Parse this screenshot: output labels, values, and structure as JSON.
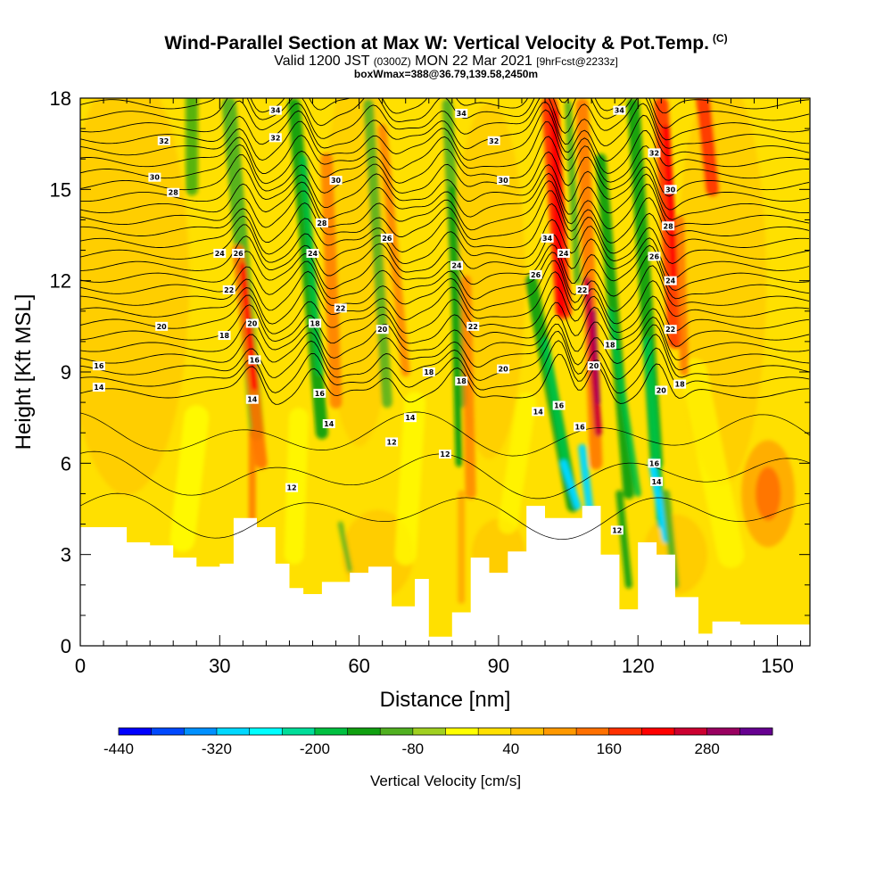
{
  "header": {
    "title": "Wind-Parallel Section at Max W: Vertical Velocity & Pot.Temp.",
    "title_mark": "(C)",
    "valid_prefix": "Valid 1200 JST",
    "valid_z": "(0300Z)",
    "valid_date": "MON 22 Mar 2021",
    "valid_fcst": "[9hrFcst@2233z]",
    "box_info": "boxWmax=388@36.79,139.58,2450m"
  },
  "chart_data": {
    "type": "heatmap",
    "xlabel": "Distance [nm]",
    "ylabel": "Height [Kft MSL]",
    "xlim": [
      0,
      157
    ],
    "ylim": [
      0,
      18
    ],
    "xticks": [
      0,
      30,
      60,
      90,
      120,
      150
    ],
    "yticks": [
      0,
      3,
      6,
      9,
      12,
      15,
      18
    ],
    "colorbar": {
      "label": "Vertical Velocity [cm/s]",
      "tick_labels": [
        "-440",
        "-320",
        "-200",
        "-80",
        "40",
        "160",
        "280"
      ],
      "levels": [
        -440,
        -400,
        -360,
        -320,
        -280,
        -240,
        -200,
        -160,
        -120,
        -80,
        -40,
        0,
        40,
        80,
        120,
        160,
        200,
        240,
        280,
        320
      ],
      "colors": [
        "#0000ff",
        "#0048ff",
        "#0090ff",
        "#00d8ff",
        "#00ffff",
        "#00dd99",
        "#00c040",
        "#10a010",
        "#50b020",
        "#a0d020",
        "#ffff00",
        "#ffe000",
        "#ffc000",
        "#ff9900",
        "#ff7000",
        "#ff3000",
        "#ff0000",
        "#cc0030",
        "#990060",
        "#660090"
      ]
    },
    "terrain_profile": {
      "x": [
        0,
        7,
        10,
        15,
        20,
        25,
        30,
        33,
        38,
        42,
        45,
        48,
        52,
        58,
        62,
        67,
        72,
        75,
        80,
        84,
        88,
        92,
        96,
        100,
        104,
        108,
        112,
        116,
        120,
        124,
        128,
        133,
        136,
        142,
        148,
        157
      ],
      "height": [
        3.9,
        3.9,
        3.4,
        3.3,
        2.9,
        2.6,
        2.7,
        4.2,
        3.9,
        2.7,
        1.9,
        1.7,
        2.1,
        2.4,
        2.6,
        1.3,
        2.2,
        0.3,
        1.1,
        2.9,
        2.4,
        3.1,
        4.6,
        4.2,
        4.2,
        4.6,
        3.0,
        1.2,
        3.4,
        3.0,
        1.6,
        0.4,
        0.8,
        0.7,
        0.7,
        0.7
      ]
    },
    "theta_contour_labels": [
      {
        "text": "14",
        "x": 4,
        "y": 8.5
      },
      {
        "text": "16",
        "x": 4,
        "y": 9.2
      },
      {
        "text": "30",
        "x": 16,
        "y": 15.4
      },
      {
        "text": "32",
        "x": 18,
        "y": 16.6
      },
      {
        "text": "28",
        "x": 20,
        "y": 14.9
      },
      {
        "text": "20",
        "x": 17.5,
        "y": 10.5
      },
      {
        "text": "24",
        "x": 30,
        "y": 12.9
      },
      {
        "text": "26",
        "x": 34,
        "y": 12.9
      },
      {
        "text": "22",
        "x": 32,
        "y": 11.7
      },
      {
        "text": "18",
        "x": 31,
        "y": 10.2
      },
      {
        "text": "20",
        "x": 37,
        "y": 10.6
      },
      {
        "text": "16",
        "x": 37.5,
        "y": 9.4
      },
      {
        "text": "14",
        "x": 37,
        "y": 8.1
      },
      {
        "text": "34",
        "x": 42,
        "y": 17.6
      },
      {
        "text": "32",
        "x": 42,
        "y": 16.7
      },
      {
        "text": "30",
        "x": 55,
        "y": 15.3
      },
      {
        "text": "28",
        "x": 52,
        "y": 13.9
      },
      {
        "text": "24",
        "x": 50,
        "y": 12.9
      },
      {
        "text": "22",
        "x": 56,
        "y": 11.1
      },
      {
        "text": "18",
        "x": 50.5,
        "y": 10.6
      },
      {
        "text": "16",
        "x": 51.5,
        "y": 8.3
      },
      {
        "text": "14",
        "x": 53.5,
        "y": 7.3
      },
      {
        "text": "26",
        "x": 66,
        "y": 13.4
      },
      {
        "text": "20",
        "x": 65,
        "y": 10.4
      },
      {
        "text": "12",
        "x": 67,
        "y": 6.7
      },
      {
        "text": "12",
        "x": 45.5,
        "y": 5.2
      },
      {
        "text": "18",
        "x": 75,
        "y": 9.0
      },
      {
        "text": "14",
        "x": 71,
        "y": 7.5
      },
      {
        "text": "12",
        "x": 78.5,
        "y": 6.3
      },
      {
        "text": "24",
        "x": 81,
        "y": 12.5
      },
      {
        "text": "22",
        "x": 84.5,
        "y": 10.5
      },
      {
        "text": "18",
        "x": 82,
        "y": 8.7
      },
      {
        "text": "34",
        "x": 82,
        "y": 17.5
      },
      {
        "text": "32",
        "x": 89,
        "y": 16.6
      },
      {
        "text": "30",
        "x": 91,
        "y": 15.3
      },
      {
        "text": "26",
        "x": 98,
        "y": 12.2
      },
      {
        "text": "20",
        "x": 91,
        "y": 9.1
      },
      {
        "text": "14",
        "x": 98.5,
        "y": 7.7
      },
      {
        "text": "16",
        "x": 103,
        "y": 7.9
      },
      {
        "text": "34",
        "x": 100.5,
        "y": 13.4
      },
      {
        "text": "24",
        "x": 104,
        "y": 12.9
      },
      {
        "text": "22",
        "x": 108,
        "y": 11.7
      },
      {
        "text": "20",
        "x": 110.5,
        "y": 9.2
      },
      {
        "text": "18",
        "x": 114,
        "y": 9.9
      },
      {
        "text": "16",
        "x": 107.5,
        "y": 7.2
      },
      {
        "text": "12",
        "x": 115.5,
        "y": 3.8
      },
      {
        "text": "34",
        "x": 116,
        "y": 17.6
      },
      {
        "text": "32",
        "x": 123.5,
        "y": 16.2
      },
      {
        "text": "30",
        "x": 127,
        "y": 15.0
      },
      {
        "text": "28",
        "x": 126.5,
        "y": 13.8
      },
      {
        "text": "26",
        "x": 123.5,
        "y": 12.8
      },
      {
        "text": "24",
        "x": 127,
        "y": 12.0
      },
      {
        "text": "22",
        "x": 127,
        "y": 10.4
      },
      {
        "text": "20",
        "x": 125,
        "y": 8.4
      },
      {
        "text": "18",
        "x": 129,
        "y": 8.6
      },
      {
        "text": "16",
        "x": 123.5,
        "y": 6.0
      },
      {
        "text": "14",
        "x": 124,
        "y": 5.4
      }
    ]
  }
}
